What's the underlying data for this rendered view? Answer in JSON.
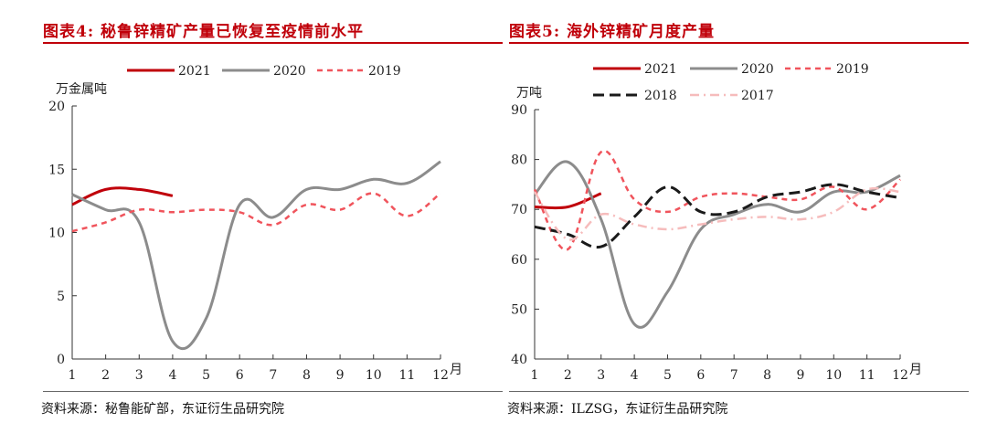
{
  "left": {
    "title": "图表4: 秘鲁锌精矿产量已恢复至疫情前水平",
    "source": "资料来源：秘鲁能矿部，东证衍生品研究院",
    "chart_data": {
      "type": "line",
      "ylabel": "万金属吨",
      "xlabel": "月",
      "ylim": [
        0,
        20
      ],
      "yticks": [
        "0",
        "5",
        "10",
        "15",
        "20"
      ],
      "x": [
        1,
        2,
        3,
        4,
        5,
        6,
        7,
        8,
        9,
        10,
        11,
        12
      ],
      "xticks": [
        "1",
        "2",
        "3",
        "4",
        "5",
        "6",
        "7",
        "8",
        "9",
        "10",
        "11",
        "12"
      ],
      "legend": "top",
      "series": [
        {
          "name": "2021",
          "color": "#c0000a",
          "dash": "solid",
          "width": 3,
          "x": [
            1,
            2,
            3,
            4
          ],
          "values": [
            12.2,
            13.4,
            13.4,
            12.9
          ]
        },
        {
          "name": "2020",
          "color": "#8c8c8c",
          "dash": "solid",
          "width": 3,
          "x": [
            1,
            2,
            3,
            4,
            5,
            6,
            7,
            8,
            9,
            10,
            11,
            12
          ],
          "values": [
            13.0,
            11.8,
            10.8,
            1.4,
            3.2,
            12.2,
            11.2,
            13.4,
            13.4,
            14.2,
            13.9,
            15.6
          ]
        },
        {
          "name": "2019",
          "color": "#f0545c",
          "dash": "6,5",
          "width": 2.5,
          "x": [
            1,
            2,
            3,
            4,
            5,
            6,
            7,
            8,
            9,
            10,
            11,
            12
          ],
          "values": [
            10.1,
            10.8,
            11.8,
            11.6,
            11.8,
            11.6,
            10.6,
            12.2,
            11.8,
            13.1,
            11.3,
            13.1
          ]
        }
      ]
    }
  },
  "right": {
    "title": "图表5: 海外锌精矿月度产量",
    "source": "资料来源：ILZSG，东证衍生品研究院",
    "chart_data": {
      "type": "line",
      "ylabel": "万吨",
      "xlabel": "月",
      "ylim": [
        40,
        90
      ],
      "yticks": [
        "40",
        "50",
        "60",
        "70",
        "80",
        "90"
      ],
      "x": [
        1,
        2,
        3,
        4,
        5,
        6,
        7,
        8,
        9,
        10,
        11,
        12
      ],
      "xticks": [
        "1",
        "2",
        "3",
        "4",
        "5",
        "6",
        "7",
        "8",
        "9",
        "10",
        "11",
        "12"
      ],
      "legend": "top",
      "series": [
        {
          "name": "2021",
          "color": "#c0000a",
          "dash": "solid",
          "width": 3,
          "x": [
            1,
            2,
            3
          ],
          "values": [
            70.5,
            70.5,
            73.2
          ]
        },
        {
          "name": "2020",
          "color": "#8c8c8c",
          "dash": "solid",
          "width": 3,
          "x": [
            1,
            2,
            3,
            4,
            5,
            6,
            7,
            8,
            9,
            10,
            11,
            12
          ],
          "values": [
            73.0,
            79.5,
            68.0,
            47.0,
            53.5,
            66.0,
            69.0,
            71.0,
            69.5,
            73.5,
            73.5,
            76.8
          ]
        },
        {
          "name": "2019",
          "color": "#f0545c",
          "dash": "6,5",
          "width": 2.5,
          "x": [
            1,
            2,
            3,
            4,
            5,
            6,
            7,
            8,
            9,
            10,
            11,
            12
          ],
          "values": [
            74.0,
            62.0,
            81.5,
            72.0,
            69.5,
            72.5,
            73.2,
            72.5,
            72.0,
            74.5,
            70.0,
            76.0
          ]
        },
        {
          "name": "2018",
          "color": "#1a1a1a",
          "dash": "12,6",
          "width": 3,
          "x": [
            1,
            2,
            3,
            4,
            5,
            6,
            7,
            8,
            9,
            10,
            11,
            12
          ],
          "values": [
            66.5,
            65.0,
            62.5,
            68.5,
            74.5,
            69.5,
            69.5,
            72.5,
            73.5,
            75.0,
            73.5,
            72.3
          ]
        },
        {
          "name": "2017",
          "color": "#f6bcbc",
          "dash": "10,5,2,5",
          "width": 2.5,
          "x": [
            1,
            2,
            3,
            4,
            5,
            6,
            7,
            8,
            9,
            10,
            11,
            12
          ],
          "values": [
            73.5,
            64.0,
            69.0,
            67.0,
            66.0,
            67.0,
            68.0,
            68.5,
            68.0,
            69.5,
            74.0,
            73.5
          ]
        }
      ]
    }
  }
}
